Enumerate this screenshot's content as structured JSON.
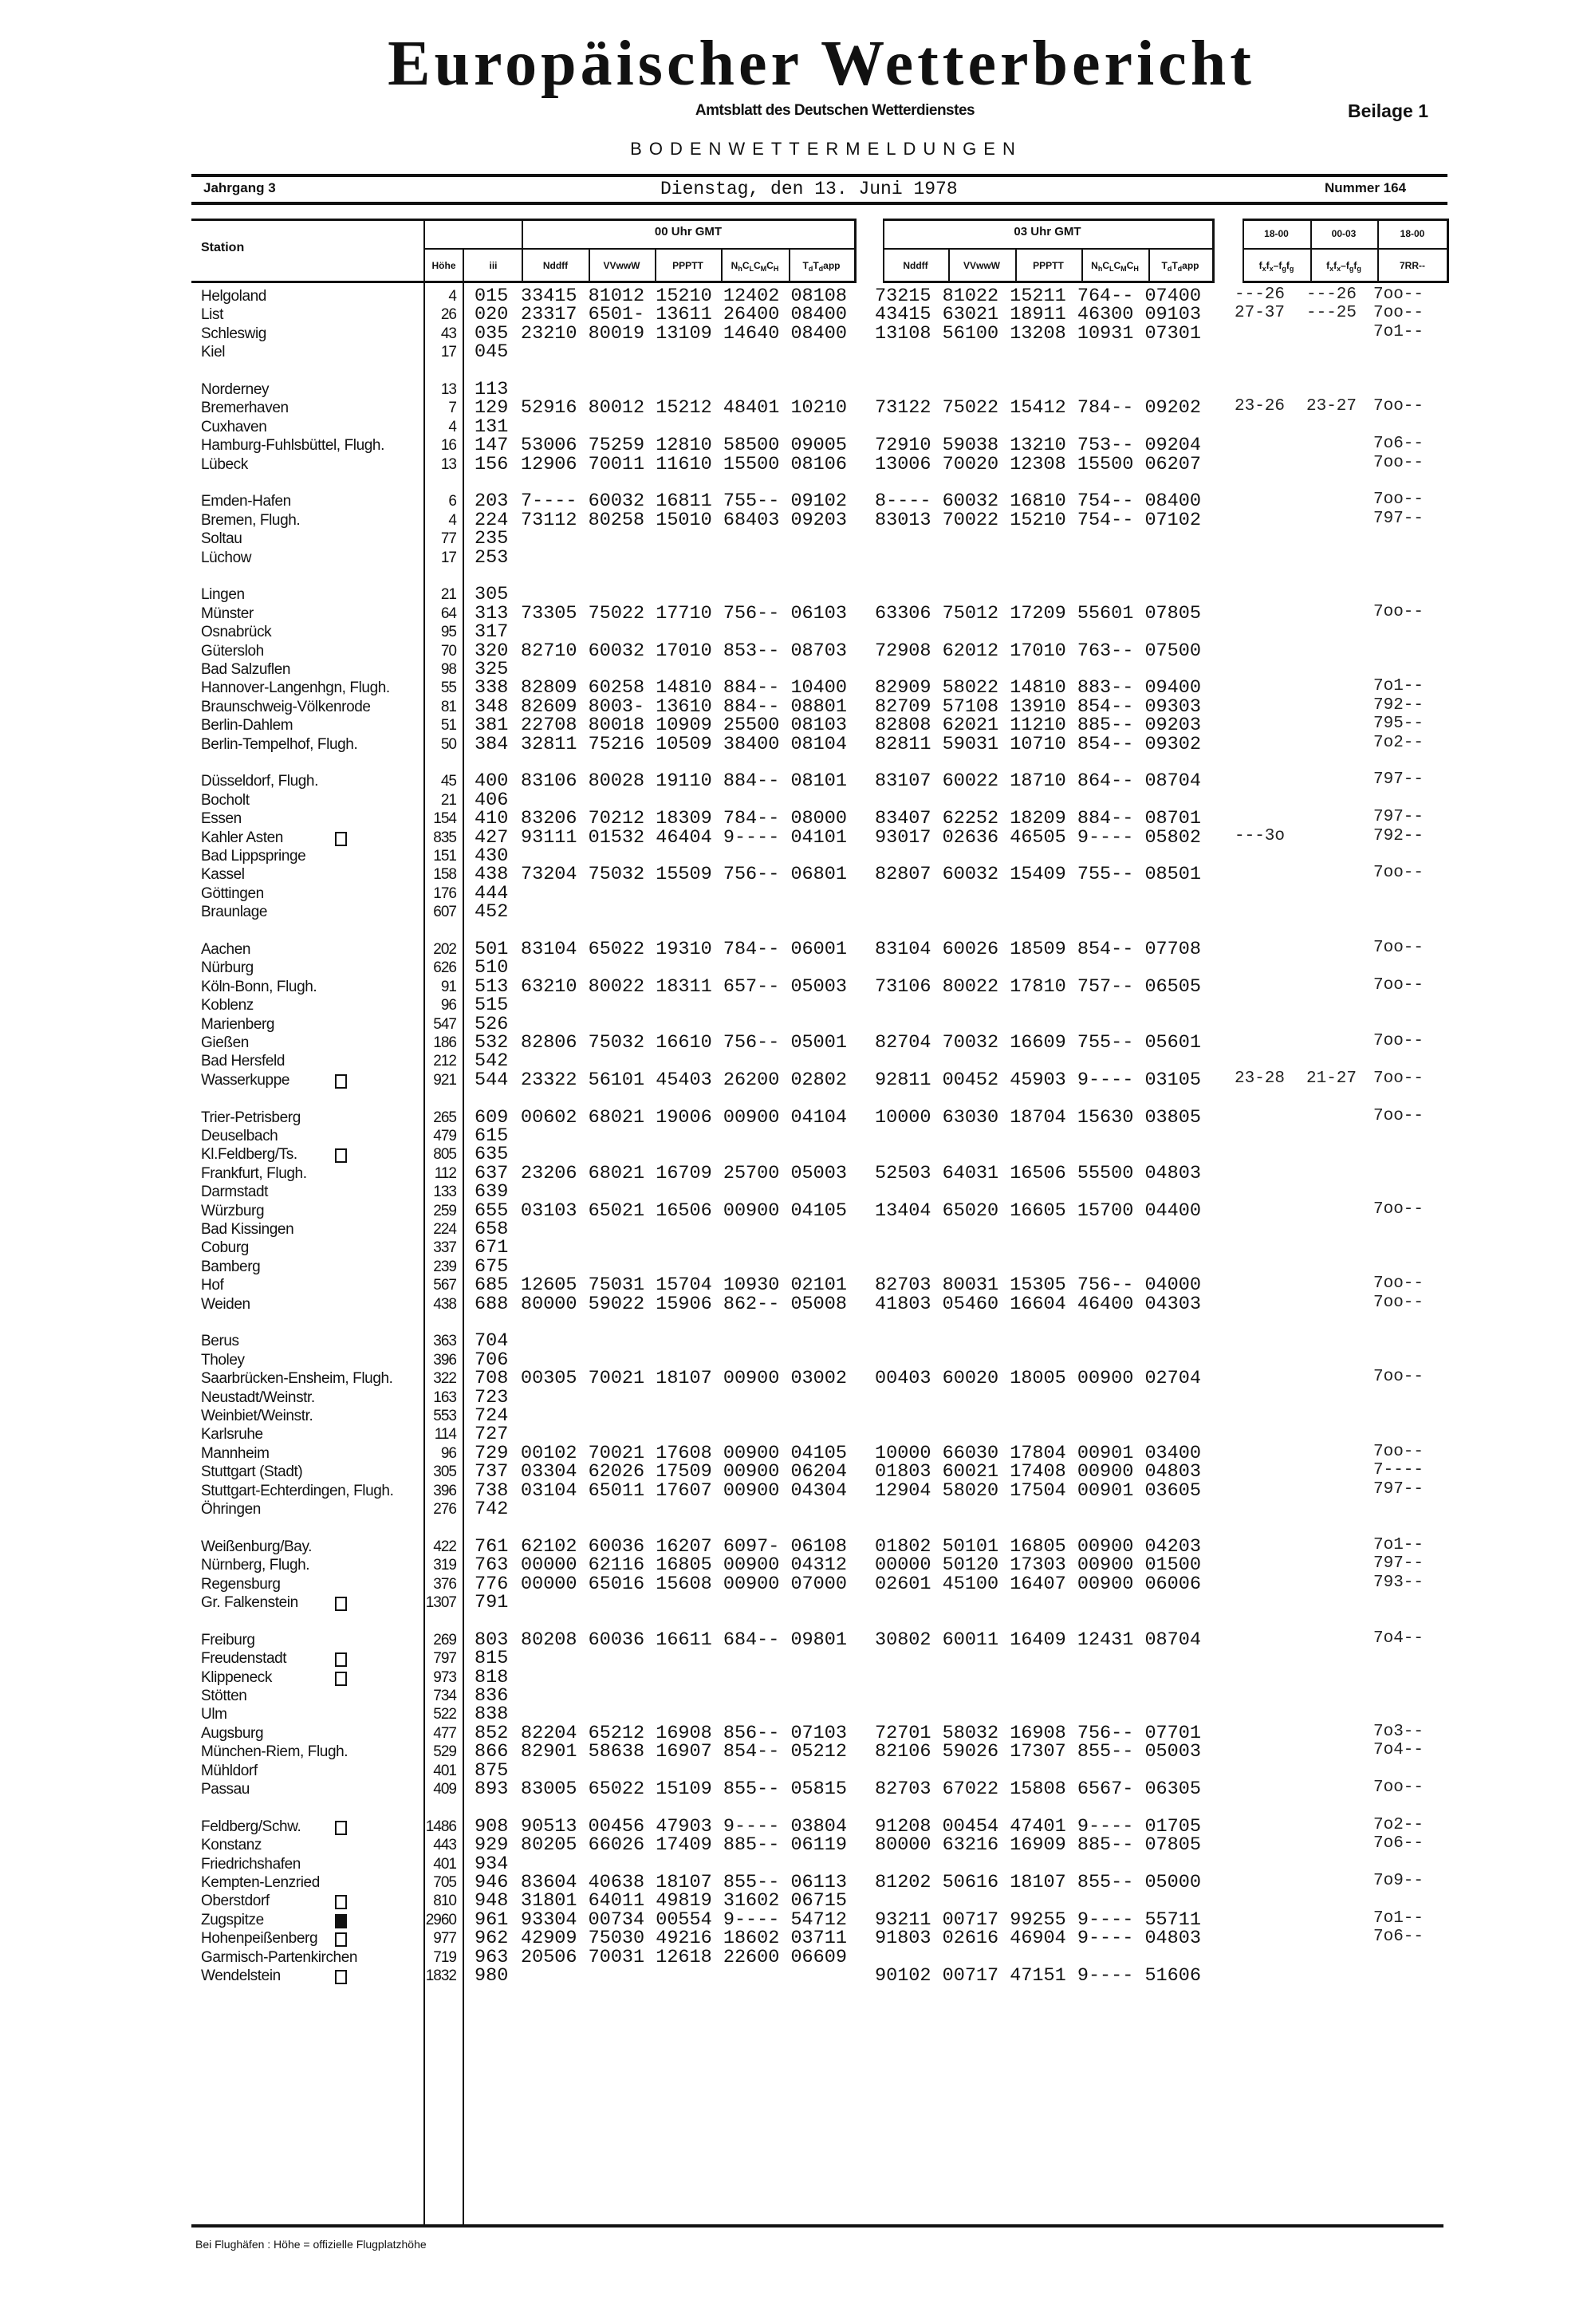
{
  "masthead": {
    "title": "Europäischer Wetterbericht",
    "subtitle": "Amtsblatt des Deutschen Wetterdienstes",
    "supplement": "Beilage 1",
    "section": "BODENWETTERMELDUNGEN"
  },
  "issue": {
    "volume": "Jahrgang 3",
    "date": "Dienstag, den 13. Juni 1978",
    "number": "Nummer 164"
  },
  "header": {
    "station": "Station",
    "hoehe": "Höhe",
    "iii": "iii",
    "group_00": "00 Uhr GMT",
    "group_03": "03 Uhr GMT",
    "cols": {
      "nddff": [
        "Nddff"
      ],
      "vvwww": [
        "VVwwW"
      ],
      "ppptt": [
        "PPPTT"
      ],
      "clouds": [
        "N",
        "h",
        "C",
        "L",
        "C",
        "M",
        "C",
        "H"
      ],
      "dew": [
        "T",
        "d",
        "T",
        "d",
        "app"
      ],
      "gust": [
        "f",
        "x",
        "f",
        "x",
        "–f",
        "g",
        "f",
        "g"
      ],
      "rain": [
        "7RR--"
      ]
    },
    "periods": [
      "18-00",
      "00-03",
      "18-00"
    ]
  },
  "groups": [
    [
      {
        "name": "Helgoland",
        "hoehe": "4",
        "iii": "015",
        "obs_00": "33415 81012 15210 12402 08108",
        "obs_03": "73215 81022 15211 764-- 07400",
        "r1": "---26",
        "r2": "---26",
        "r3": "7oo--"
      },
      {
        "name": "List",
        "hoehe": "26",
        "iii": "020",
        "obs_00": "23317 6501- 13611 26400 08400",
        "obs_03": "43415 63021 18911 46300 09103",
        "r1": "27-37",
        "r2": "---25",
        "r3": "7oo--"
      },
      {
        "name": "Schleswig",
        "hoehe": "43",
        "iii": "035",
        "obs_00": "23210 80019 13109 14640 08400",
        "obs_03": "13108 56100 13208 10931 07301",
        "r3": "7o1--"
      },
      {
        "name": "Kiel",
        "hoehe": "17",
        "iii": "045"
      }
    ],
    [
      {
        "name": "Norderney",
        "hoehe": "13",
        "iii": "113"
      },
      {
        "name": "Bremerhaven",
        "hoehe": "7",
        "iii": "129",
        "obs_00": "52916 80012 15212 48401 10210",
        "obs_03": "73122 75022 15412 784-- 09202",
        "r1": "23-26",
        "r2": "23-27",
        "r3": "7oo--"
      },
      {
        "name": "Cuxhaven",
        "hoehe": "4",
        "iii": "131"
      },
      {
        "name": "Hamburg-Fuhlsbüttel, Flugh.",
        "hoehe": "16",
        "iii": "147",
        "obs_00": "53006 75259 12810 58500 09005",
        "obs_03": "72910 59038 13210 753-- 09204",
        "r3": "7o6--"
      },
      {
        "name": "Lübeck",
        "hoehe": "13",
        "iii": "156",
        "obs_00": "12906 70011 11610 15500 08106",
        "obs_03": "13006 70020 12308 15500 06207",
        "r3": "7oo--"
      }
    ],
    [
      {
        "name": "Emden-Hafen",
        "hoehe": "6",
        "iii": "203",
        "obs_00": "7---- 60032 16811 755-- 09102",
        "obs_03": "8---- 60032 16810 754-- 08400",
        "r3": "7oo--"
      },
      {
        "name": "Bremen, Flugh.",
        "hoehe": "4",
        "iii": "224",
        "obs_00": "73112 80258 15010 68403 09203",
        "obs_03": "83013 70022 15210 754-- 07102",
        "r3": "797--"
      },
      {
        "name": "Soltau",
        "hoehe": "77",
        "iii": "235"
      },
      {
        "name": "Lüchow",
        "hoehe": "17",
        "iii": "253"
      }
    ],
    [
      {
        "name": "Lingen",
        "hoehe": "21",
        "iii": "305"
      },
      {
        "name": "Münster",
        "hoehe": "64",
        "iii": "313",
        "obs_00": "73305 75022 17710 756-- 06103",
        "obs_03": "63306 75012 17209 55601 07805",
        "r3": "7oo--"
      },
      {
        "name": "Osnabrück",
        "hoehe": "95",
        "iii": "317"
      },
      {
        "name": "Gütersloh",
        "hoehe": "70",
        "iii": "320",
        "obs_00": "82710 60032 17010 853-- 08703",
        "obs_03": "72908 62012 17010 763-- 07500"
      },
      {
        "name": "Bad Salzuflen",
        "hoehe": "98",
        "iii": "325"
      },
      {
        "name": "Hannover-Langenhgn, Flugh.",
        "hoehe": "55",
        "iii": "338",
        "obs_00": "82809 60258 14810 884-- 10400",
        "obs_03": "82909 58022 14810 883-- 09400",
        "r3": "7o1--"
      },
      {
        "name": "Braunschweig-Völkenrode",
        "hoehe": "81",
        "iii": "348",
        "obs_00": "82609 8003- 13610 884-- 08801",
        "obs_03": "82709 57108 13910 854-- 09303",
        "r3": "792--"
      },
      {
        "name": "Berlin-Dahlem",
        "hoehe": "51",
        "iii": "381",
        "obs_00": "22708 80018 10909 25500 08103",
        "obs_03": "82808 62021 11210 885-- 09203",
        "r3": "795--"
      },
      {
        "name": "Berlin-Tempelhof, Flugh.",
        "hoehe": "50",
        "iii": "384",
        "obs_00": "32811 75216 10509 38400 08104",
        "obs_03": "82811 59031 10710 854-- 09302",
        "r3": "7o2--"
      }
    ],
    [
      {
        "name": "Düsseldorf, Flugh.",
        "hoehe": "45",
        "iii": "400",
        "obs_00": "83106 80028 19110 884-- 08101",
        "obs_03": "83107 60022 18710 864-- 08704",
        "r3": "797--"
      },
      {
        "name": "Bocholt",
        "hoehe": "21",
        "iii": "406"
      },
      {
        "name": "Essen",
        "hoehe": "154",
        "iii": "410",
        "obs_00": "83206 70212 18309 784-- 08000",
        "obs_03": "83407 62252 18209 884-- 08701",
        "r3": "797--"
      },
      {
        "name": "Kahler Asten",
        "box": "open",
        "hoehe": "835",
        "iii": "427",
        "obs_00": "93111 01532 46404 9---- 04101",
        "obs_03": "93017 02636 46505 9---- 05802",
        "r1": "---3o",
        "r3": "792--"
      },
      {
        "name": "Bad Lippspringe",
        "hoehe": "151",
        "iii": "430"
      },
      {
        "name": "Kassel",
        "hoehe": "158",
        "iii": "438",
        "obs_00": "73204 75032 15509 756-- 06801",
        "obs_03": "82807 60032 15409 755-- 08501",
        "r3": "7oo--"
      },
      {
        "name": "Göttingen",
        "hoehe": "176",
        "iii": "444"
      },
      {
        "name": "Braunlage",
        "hoehe": "607",
        "iii": "452"
      }
    ],
    [
      {
        "name": "Aachen",
        "hoehe": "202",
        "iii": "501",
        "obs_00": "83104 65022 19310 784-- 06001",
        "obs_03": "83104 60026 18509 854-- 07708",
        "r3": "7oo--"
      },
      {
        "name": "Nürburg",
        "hoehe": "626",
        "iii": "510"
      },
      {
        "name": "Köln-Bonn, Flugh.",
        "hoehe": "91",
        "iii": "513",
        "obs_00": "63210 80022 18311 657-- 05003",
        "obs_03": "73106 80022 17810 757-- 06505",
        "r3": "7oo--"
      },
      {
        "name": "Koblenz",
        "hoehe": "96",
        "iii": "515"
      },
      {
        "name": "Marienberg",
        "hoehe": "547",
        "iii": "526"
      },
      {
        "name": "Gießen",
        "hoehe": "186",
        "iii": "532",
        "obs_00": "82806 75032 16610 756-- 05001",
        "obs_03": "82704 70032 16609 755-- 05601",
        "r3": "7oo--"
      },
      {
        "name": "Bad Hersfeld",
        "hoehe": "212",
        "iii": "542"
      },
      {
        "name": "Wasserkuppe",
        "box": "open",
        "hoehe": "921",
        "iii": "544",
        "obs_00": "23322 56101 45403 26200 02802",
        "obs_03": "92811 00452 45903 9---- 03105",
        "r1": "23-28",
        "r2": "21-27",
        "r3": "7oo--"
      }
    ],
    [
      {
        "name": "Trier-Petrisberg",
        "hoehe": "265",
        "iii": "609",
        "obs_00": "00602 68021 19006 00900 04104",
        "obs_03": "10000 63030 18704 15630 03805",
        "r3": "7oo--"
      },
      {
        "name": "Deuselbach",
        "hoehe": "479",
        "iii": "615"
      },
      {
        "name": "Kl.Feldberg/Ts.",
        "box": "open",
        "hoehe": "805",
        "iii": "635"
      },
      {
        "name": "Frankfurt, Flugh.",
        "hoehe": "112",
        "iii": "637",
        "obs_00": "23206 68021 16709 25700 05003",
        "obs_03": "52503 64031 16506 55500 04803"
      },
      {
        "name": "Darmstadt",
        "hoehe": "133",
        "iii": "639"
      },
      {
        "name": "Würzburg",
        "hoehe": "259",
        "iii": "655",
        "obs_00": "03103 65021 16506 00900 04105",
        "obs_03": "13404 65020 16605 15700 04400",
        "r3": "7oo--"
      },
      {
        "name": "Bad Kissingen",
        "hoehe": "224",
        "iii": "658"
      },
      {
        "name": "Coburg",
        "hoehe": "337",
        "iii": "671"
      },
      {
        "name": "Bamberg",
        "hoehe": "239",
        "iii": "675"
      },
      {
        "name": "Hof",
        "hoehe": "567",
        "iii": "685",
        "obs_00": "12605 75031 15704 10930 02101",
        "obs_03": "82703 80031 15305 756-- 04000",
        "r3": "7oo--"
      },
      {
        "name": "Weiden",
        "hoehe": "438",
        "iii": "688",
        "obs_00": "80000 59022 15906 862-- 05008",
        "obs_03": "41803 05460 16604 46400 04303",
        "r3": "7oo--"
      }
    ],
    [
      {
        "name": "Berus",
        "hoehe": "363",
        "iii": "704"
      },
      {
        "name": "Tholey",
        "hoehe": "396",
        "iii": "706"
      },
      {
        "name": "Saarbrücken-Ensheim, Flugh.",
        "hoehe": "322",
        "iii": "708",
        "obs_00": "00305 70021 18107 00900 03002",
        "obs_03": "00403 60020 18005 00900 02704",
        "r3": "7oo--"
      },
      {
        "name": "Neustadt/Weinstr.",
        "hoehe": "163",
        "iii": "723"
      },
      {
        "name": "Weinbiet/Weinstr.",
        "hoehe": "553",
        "iii": "724"
      },
      {
        "name": "Karlsruhe",
        "hoehe": "114",
        "iii": "727"
      },
      {
        "name": "Mannheim",
        "hoehe": "96",
        "iii": "729",
        "obs_00": "00102 70021 17608 00900 04105",
        "obs_03": "10000 66030 17804 00901 03400",
        "r3": "7oo--"
      },
      {
        "name": "Stuttgart (Stadt)",
        "hoehe": "305",
        "iii": "737",
        "obs_00": "03304 62026 17509 00900 06204",
        "obs_03": "01803 60021 17408 00900 04803",
        "r3": "7----"
      },
      {
        "name": "Stuttgart-Echterdingen, Flugh.",
        "hoehe": "396",
        "iii": "738",
        "obs_00": "03104 65011 17607 00900 04304",
        "obs_03": "12904 58020 17504 00901 03605",
        "r3": "797--"
      },
      {
        "name": "Öhringen",
        "hoehe": "276",
        "iii": "742"
      }
    ],
    [
      {
        "name": "Weißenburg/Bay.",
        "hoehe": "422",
        "iii": "761",
        "obs_00": "62102 60036 16207 6097- 06108",
        "obs_03": "01802 50101 16805 00900 04203",
        "r3": "7o1--"
      },
      {
        "name": "Nürnberg, Flugh.",
        "hoehe": "319",
        "iii": "763",
        "obs_00": "00000 62116 16805 00900 04312",
        "obs_03": "00000 50120 17303 00900 01500",
        "r3": "797--"
      },
      {
        "name": "Regensburg",
        "hoehe": "376",
        "iii": "776",
        "obs_00": "00000 65016 15608 00900 07000",
        "obs_03": "02601 45100 16407 00900 06006",
        "r3": "793--"
      },
      {
        "name": "Gr. Falkenstein",
        "box": "open",
        "hoehe": "1307",
        "iii": "791"
      }
    ],
    [
      {
        "name": "Freiburg",
        "hoehe": "269",
        "iii": "803",
        "obs_00": "80208 60036 16611 684-- 09801",
        "obs_03": "30802 60011 16409 12431 08704",
        "r3": "7o4--"
      },
      {
        "name": "Freudenstadt",
        "box": "open",
        "hoehe": "797",
        "iii": "815"
      },
      {
        "name": "Klippeneck",
        "box": "open",
        "hoehe": "973",
        "iii": "818"
      },
      {
        "name": "Stötten",
        "hoehe": "734",
        "iii": "836"
      },
      {
        "name": "Ulm",
        "hoehe": "522",
        "iii": "838"
      },
      {
        "name": "Augsburg",
        "hoehe": "477",
        "iii": "852",
        "obs_00": "82204 65212 16908 856-- 07103",
        "obs_03": "72701 58032 16908 756-- 07701",
        "r3": "7o3--"
      },
      {
        "name": "München-Riem, Flugh.",
        "hoehe": "529",
        "iii": "866",
        "obs_00": "82901 58638 16907 854-- 05212",
        "obs_03": "82106 59026 17307 855-- 05003",
        "r3": "7o4--"
      },
      {
        "name": "Mühldorf",
        "hoehe": "401",
        "iii": "875"
      },
      {
        "name": "Passau",
        "hoehe": "409",
        "iii": "893",
        "obs_00": "83005 65022 15109 855-- 05815",
        "obs_03": "82703 67022 15808 6567- 06305",
        "r3": "7oo--"
      }
    ],
    [
      {
        "name": "Feldberg/Schw.",
        "box": "open",
        "hoehe": "1486",
        "iii": "908",
        "obs_00": "90513 00456 47903 9---- 03804",
        "obs_03": "91208 00454 47401 9---- 01705",
        "r3": "7o2--"
      },
      {
        "name": "Konstanz",
        "hoehe": "443",
        "iii": "929",
        "obs_00": "80205 66026 17409 885-- 06119",
        "obs_03": "80000 63216 16909 885-- 07805",
        "r3": "7o6--"
      },
      {
        "name": "Friedrichshafen",
        "hoehe": "401",
        "iii": "934"
      },
      {
        "name": "Kempten-Lenzried",
        "hoehe": "705",
        "iii": "946",
        "obs_00": "83604 40638 18107 855-- 06113",
        "obs_03": "81202 50616 18107 855-- 05000",
        "r3": "7o9--"
      },
      {
        "name": "Oberstdorf",
        "box": "open",
        "hoehe": "810",
        "iii": "948",
        "obs_00": "31801 64011 49819 31602 06715"
      },
      {
        "name": "Zugspitze",
        "box": "filled",
        "hoehe": "2960",
        "iii": "961",
        "obs_00": "93304 00734 00554 9---- 54712",
        "obs_03": "93211 00717 99255 9---- 55711",
        "r3": "7o1--"
      },
      {
        "name": "Hohenpeißenberg",
        "box": "open",
        "hoehe": "977",
        "iii": "962",
        "obs_00": "42909 75030 49216 18602 03711",
        "obs_03": "91803 02616 46904 9---- 04803",
        "r3": "7o6--"
      },
      {
        "name": "Garmisch-Partenkirchen",
        "hoehe": "719",
        "iii": "963",
        "obs_00": "20506 70031 12618 22600 06609"
      },
      {
        "name": "Wendelstein",
        "box": "open",
        "hoehe": "1832",
        "iii": "980",
        "obs_03": "90102 00717 47151 9---- 51606"
      }
    ]
  ],
  "footnote": "Bei Flughäfen : Höhe = offizielle Flugplatzhöhe"
}
